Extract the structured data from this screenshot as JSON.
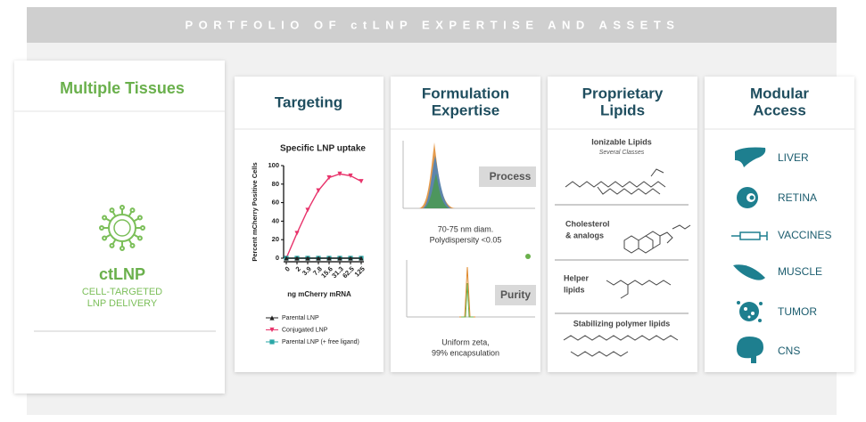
{
  "banner": "PORTFOLIO OF ctLNP EXPERTISE AND ASSETS",
  "left_panel": {
    "title": "Multiple Tissues",
    "name": "ctLNP",
    "subtitle": [
      "CELL-TARGETED",
      "LNP DELIVERY"
    ]
  },
  "targeting": {
    "title": "Targeting"
  },
  "chart_data": {
    "type": "line",
    "title": "Specific LNP uptake",
    "x_label": "ng mCherry mRNA",
    "y_label": "Percent mCherry Positive Cells",
    "categories": [
      "0",
      "2",
      "3.9",
      "7.8",
      "15.6",
      "31.3",
      "62.5",
      "125"
    ],
    "series": [
      {
        "name": "Parental LNP",
        "color": "#222222",
        "values": [
          0,
          0,
          0,
          0,
          0,
          0,
          0,
          0
        ]
      },
      {
        "name": "Conjugated LNP",
        "color": "#e8336b",
        "values": [
          0,
          27,
          52,
          73,
          87,
          91,
          89,
          83
        ]
      },
      {
        "name": "Parental LNP (+ free ligand)",
        "color": "#2aa7a7",
        "values": [
          0,
          0,
          0,
          0,
          0,
          0,
          0,
          0
        ]
      }
    ],
    "ylim": [
      0,
      100
    ],
    "yticks": [
      0,
      20,
      40,
      60,
      80,
      100
    ]
  },
  "formulation": {
    "title": [
      "Formulation",
      "Expertise"
    ],
    "process": "Process",
    "process_text": [
      "70-75 nm diam.",
      "Polydispersity <0.05"
    ],
    "purity": "Purity",
    "purity_text": [
      "Uniform zeta,",
      "99% encapsulation"
    ]
  },
  "lipids": {
    "title": [
      "Proprietary",
      "Lipids"
    ],
    "ionizable": "Ionizable Lipids",
    "ionizable_sub": "Several Classes",
    "cholesterol": [
      "Cholesterol",
      "& analogs"
    ],
    "helper": [
      "Helper",
      "lipids"
    ],
    "stabilizing": "Stabilizing polymer lipids"
  },
  "access": {
    "title": [
      "Modular",
      "Access"
    ],
    "items": [
      "LIVER",
      "RETINA",
      "VACCINES",
      "MUSCLE",
      "TUMOR",
      "CNS"
    ]
  }
}
